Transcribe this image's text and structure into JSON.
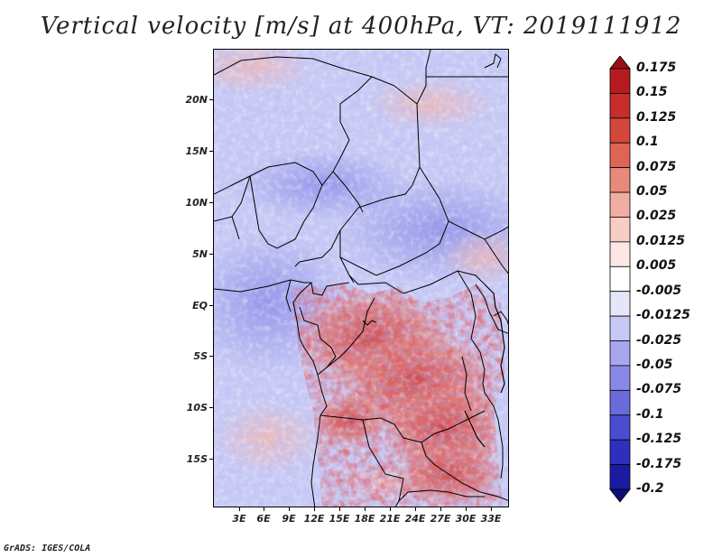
{
  "title": "Vertical velocity [m/s] at 400hPa, VT: 2019111912",
  "footer": "GrADS: IGES/COLA",
  "map": {
    "lat_labels": [
      "20N",
      "15N",
      "10N",
      "5N",
      "EQ",
      "5S",
      "10S",
      "15S"
    ],
    "lon_labels": [
      "3E",
      "6E",
      "9E",
      "12E",
      "15E",
      "18E",
      "21E",
      "24E",
      "27E",
      "30E",
      "33E"
    ]
  },
  "colorbar": {
    "labels": [
      "0.175",
      "0.15",
      "0.125",
      "0.1",
      "0.075",
      "0.05",
      "0.025",
      "0.0125",
      "0.005",
      "-0.005",
      "-0.0125",
      "-0.025",
      "-0.05",
      "-0.075",
      "-0.1",
      "-0.125",
      "-0.175",
      "-0.2"
    ],
    "colors": [
      "#9b0f14",
      "#b51b1e",
      "#c72e2b",
      "#d4473d",
      "#de6454",
      "#e8897b",
      "#f1ada3",
      "#f7cdc6",
      "#fbe8e5",
      "#ffffff",
      "#e6e6fb",
      "#c8c8f6",
      "#a7a7ee",
      "#8888e6",
      "#6a6adc",
      "#4c4cd0",
      "#2f2fbf",
      "#1a1aa3",
      "#0d0d7a"
    ]
  }
}
